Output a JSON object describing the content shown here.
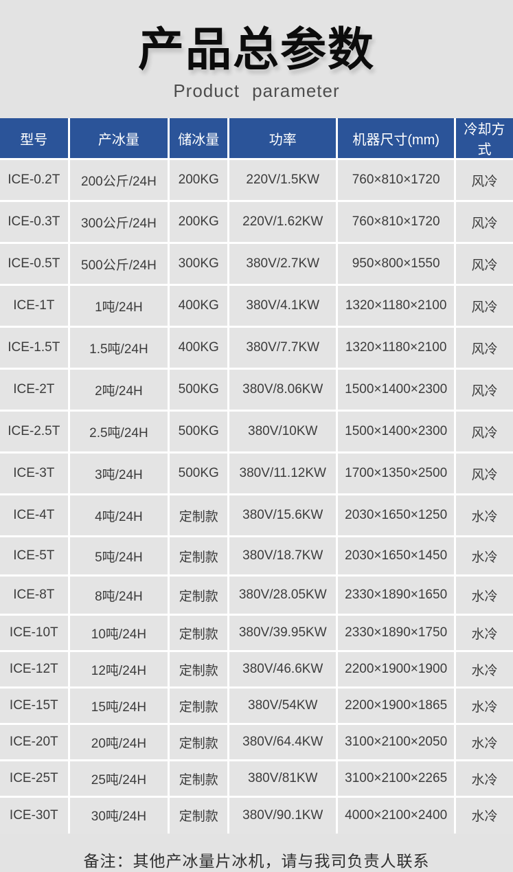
{
  "page": {
    "title": "产品总参数",
    "subtitle": "Product parameter",
    "note": "备注：其他产冰量片冰机，请与我司负责人联系"
  },
  "table": {
    "columns": [
      "型号",
      "产冰量",
      "储冰量",
      "功率",
      "机器尺寸(mm)",
      "冷却方式"
    ],
    "rows": [
      [
        "ICE-0.2T",
        "200公斤/24H",
        "200KG",
        "220V/1.5KW",
        "760×810×1720",
        "风冷"
      ],
      [
        "ICE-0.3T",
        "300公斤/24H",
        "200KG",
        "220V/1.62KW",
        "760×810×1720",
        "风冷"
      ],
      [
        "ICE-0.5T",
        "500公斤/24H",
        "300KG",
        "380V/2.7KW",
        "950×800×1550",
        "风冷"
      ],
      [
        "ICE-1T",
        "1吨/24H",
        "400KG",
        "380V/4.1KW",
        "1320×1180×2100",
        "风冷"
      ],
      [
        "ICE-1.5T",
        "1.5吨/24H",
        "400KG",
        "380V/7.7KW",
        "1320×1180×2100",
        "风冷"
      ],
      [
        "ICE-2T",
        "2吨/24H",
        "500KG",
        "380V/8.06KW",
        "1500×1400×2300",
        "风冷"
      ],
      [
        "ICE-2.5T",
        "2.5吨/24H",
        "500KG",
        "380V/10KW",
        "1500×1400×2300",
        "风冷"
      ],
      [
        "ICE-3T",
        "3吨/24H",
        "500KG",
        "380V/11.12KW",
        "1700×1350×2500",
        "风冷"
      ],
      [
        "ICE-4T",
        "4吨/24H",
        "定制款",
        "380V/15.6KW",
        "2030×1650×1250",
        "水冷"
      ],
      [
        "ICE-5T",
        "5吨/24H",
        "定制款",
        "380V/18.7KW",
        "2030×1650×1450",
        "水冷"
      ],
      [
        "ICE-8T",
        "8吨/24H",
        "定制款",
        "380V/28.05KW",
        "2330×1890×1650",
        "水冷"
      ],
      [
        "ICE-10T",
        "10吨/24H",
        "定制款",
        "380V/39.95KW",
        "2330×1890×1750",
        "水冷"
      ],
      [
        "ICE-12T",
        "12吨/24H",
        "定制款",
        "380V/46.6KW",
        "2200×1900×1900",
        "水冷"
      ],
      [
        "ICE-15T",
        "15吨/24H",
        "定制款",
        "380V/54KW",
        "2200×1900×1865",
        "水冷"
      ],
      [
        "ICE-20T",
        "20吨/24H",
        "定制款",
        "380V/64.4KW",
        "3100×2100×2050",
        "水冷"
      ],
      [
        "ICE-25T",
        "25吨/24H",
        "定制款",
        "380V/81KW",
        "3100×2100×2265",
        "水冷"
      ],
      [
        "ICE-30T",
        "30吨/24H",
        "定制款",
        "380V/90.1KW",
        "4000×2100×2400",
        "水冷"
      ]
    ]
  },
  "colors": {
    "page_background": "#e3e3e3",
    "header_background": "#2b5499",
    "header_text": "#ffffff",
    "cell_background": "#e4e4e4",
    "cell_text": "#3c3c3c",
    "grid_border": "#ffffff"
  }
}
